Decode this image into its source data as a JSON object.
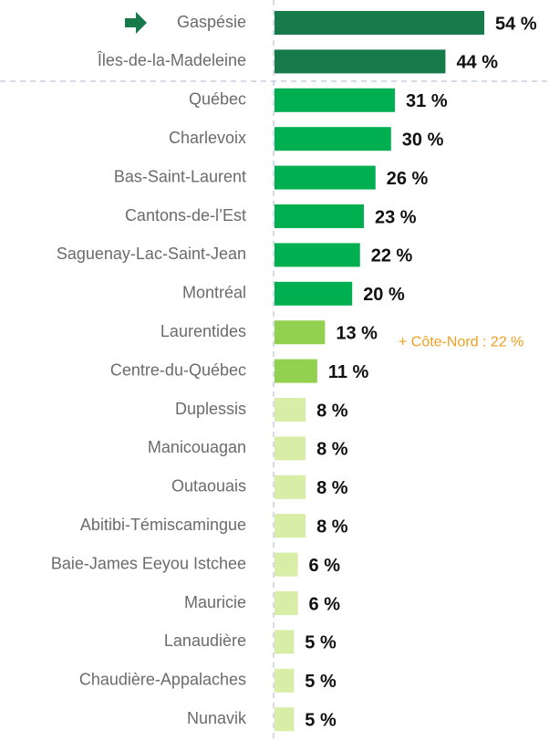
{
  "chart_data": {
    "type": "bar",
    "orientation": "horizontal",
    "categories": [
      "Gaspésie",
      "Îles-de-la-Madeleine",
      "Québec",
      "Charlevoix",
      "Bas-Saint-Laurent",
      "Cantons-de-l’Est",
      "Saguenay-Lac-Saint-Jean",
      "Montréal",
      "Laurentides",
      "Centre-du-Québec",
      "Duplessis",
      "Manicouagan",
      "Outaouais",
      "Abitibi-Témiscamingue",
      "Baie-James Eeyou Istchee",
      "Mauricie",
      "Lanaudière",
      "Chaudière-Appalaches",
      "Nunavik"
    ],
    "values": [
      54,
      44,
      31,
      30,
      26,
      23,
      22,
      20,
      13,
      11,
      8,
      8,
      8,
      8,
      6,
      6,
      5,
      5,
      5
    ],
    "value_labels": [
      "54 %",
      "44 %",
      "31 %",
      "30 %",
      "26 %",
      "23 %",
      "22 %",
      "20 %",
      "13 %",
      "11 %",
      "8 %",
      "8 %",
      "8 %",
      "8 %",
      "6 %",
      "6 %",
      "5 %",
      "5 %",
      "5 %"
    ],
    "colors": [
      "#167a4b",
      "#167a4b",
      "#00b050",
      "#00b050",
      "#00b050",
      "#00b050",
      "#00b050",
      "#00b050",
      "#92d050",
      "#92d050",
      "#d8eda6",
      "#d8eda6",
      "#d8eda6",
      "#d8eda6",
      "#d8eda6",
      "#d8eda6",
      "#d8eda6",
      "#d8eda6",
      "#d8eda6"
    ],
    "annotation": "+ Côte-Nord : 22 %",
    "annotation_color": "#f0a020"
  }
}
